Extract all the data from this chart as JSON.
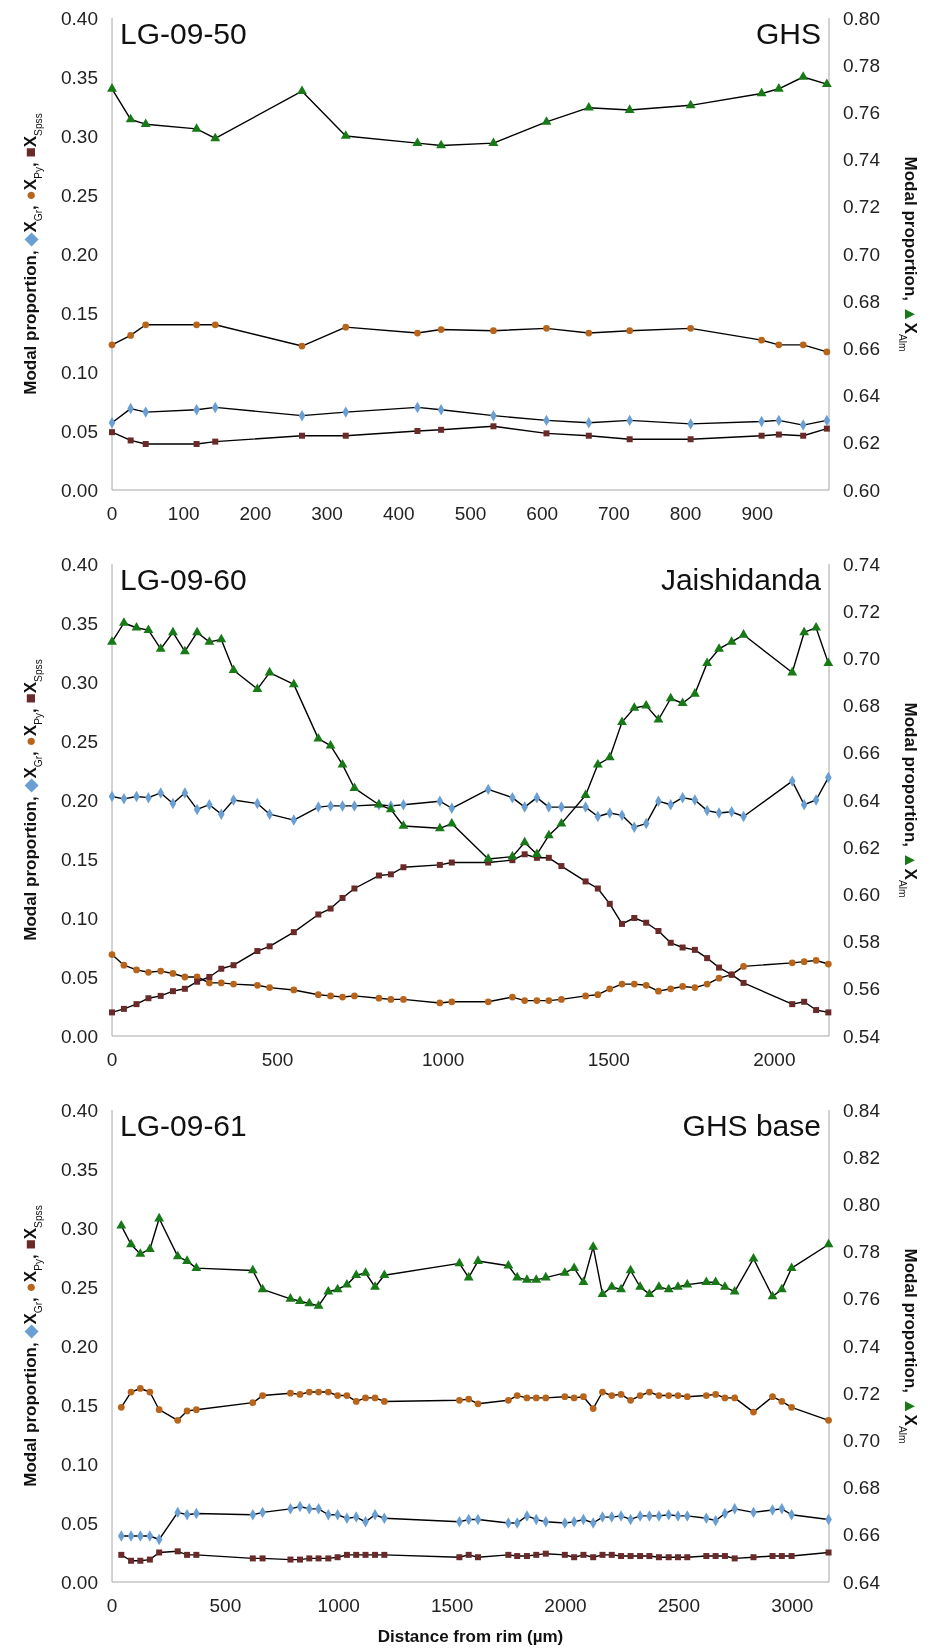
{
  "chart_data": [
    {
      "type": "line",
      "title": "LG-09-50",
      "annotations": [
        "GHS"
      ],
      "ylabel": "Modal proportion, ◆X$_{Gr}$, ●X$_{Py}$, ■X$_{Spss}$",
      "y2label": "Modal proportion, ▲X$_{Alm}$",
      "grid": false,
      "x": [
        0,
        26,
        47,
        118,
        144,
        265,
        326,
        426,
        459,
        532,
        606,
        665,
        722,
        807,
        906,
        930,
        964,
        997
      ],
      "xlim": [
        0,
        1000
      ],
      "xticks": [
        0,
        100,
        200,
        300,
        400,
        500,
        600,
        700,
        800,
        900
      ],
      "ylim": [
        0,
        0.4
      ],
      "yticks": [
        {
          "value": 0,
          "label": "0.00"
        },
        0.05,
        {
          "value": 0.1,
          "label": "0.10"
        },
        0.15,
        {
          "value": 0.2,
          "label": "0.20"
        },
        0.25,
        {
          "value": 0.3,
          "label": "0.30"
        },
        0.35,
        {
          "value": 0.4,
          "label": "0.40"
        }
      ],
      "y2lim": [
        0.6,
        0.8
      ],
      "y2ticks": [
        {
          "value": 0.6,
          "label": "0.60"
        },
        0.62,
        0.64,
        0.66,
        0.68,
        {
          "value": 0.7,
          "label": "0.70"
        },
        0.72,
        0.74,
        0.76,
        0.78,
        {
          "value": 0.8,
          "label": "0.80"
        }
      ],
      "series": [
        {
          "color": "#6a9fd4",
          "marker": "diamond",
          "values": [
            0.057,
            0.069,
            0.066,
            0.068,
            0.07,
            0.063,
            0.066,
            0.07,
            0.068,
            0.063,
            0.059,
            0.057,
            0.059,
            0.056,
            0.058,
            0.059,
            0.055,
            0.059
          ]
        },
        {
          "color": "#b8651b",
          "marker": "circle",
          "values": [
            0.123,
            0.131,
            0.14,
            0.14,
            0.14,
            0.122,
            0.138,
            0.133,
            0.136,
            0.135,
            0.137,
            0.133,
            0.135,
            0.137,
            0.127,
            0.123,
            0.123,
            0.117
          ]
        },
        {
          "color": "#6b2a2a",
          "marker": "square",
          "values": [
            0.049,
            0.042,
            0.039,
            0.039,
            0.041,
            0.046,
            0.046,
            0.05,
            0.051,
            0.054,
            0.048,
            0.046,
            0.043,
            0.043,
            0.046,
            0.047,
            0.046,
            0.052
          ]
        },
        {
          "color": "#177a17",
          "marker": "triangle",
          "axis": "y2",
          "values": [
            0.77,
            0.757,
            0.755,
            0.753,
            0.749,
            0.769,
            0.75,
            0.747,
            0.746,
            0.747,
            0.756,
            0.762,
            0.761,
            0.763,
            0.768,
            0.77,
            0.775,
            0.772
          ]
        }
      ]
    },
    {
      "type": "line",
      "title": "LG-09-60",
      "annotations": [
        "Jaishidanda"
      ],
      "ylabel": "Modal proportion, ◆X$_{Gr}$, ●X$_{Py}$, ■X$_{Spss}$",
      "y2label": "Modal proportion, ▲X$_{Alm}$",
      "grid": false,
      "x": [
        0,
        36,
        74,
        110,
        147,
        184,
        220,
        257,
        294,
        330,
        367,
        439,
        476,
        549,
        623,
        660,
        696,
        732,
        806,
        842,
        880,
        990,
        1026,
        1136,
        1209,
        1246,
        1283,
        1319,
        1357,
        1430,
        1467,
        1503,
        1540,
        1577,
        1613,
        1650,
        1687,
        1723,
        1760,
        1797,
        1833,
        1871,
        1907,
        2054,
        2090,
        2126,
        2163
      ],
      "xlim": [
        0,
        2165
      ],
      "xticks": [
        0,
        500,
        1000,
        1500,
        2000
      ],
      "ylim": [
        0,
        0.4
      ],
      "yticks": [
        {
          "value": 0,
          "label": "0.00"
        },
        0.05,
        {
          "value": 0.1,
          "label": "0.10"
        },
        0.15,
        {
          "value": 0.2,
          "label": "0.20"
        },
        0.25,
        {
          "value": 0.3,
          "label": "0.30"
        },
        0.35,
        {
          "value": 0.4,
          "label": "0.40"
        }
      ],
      "y2lim": [
        0.54,
        0.74
      ],
      "y2ticks": [
        0.54,
        0.56,
        0.58,
        {
          "value": 0.6,
          "label": "0.60"
        },
        0.62,
        0.64,
        0.66,
        0.68,
        {
          "value": 0.7,
          "label": "0.70"
        },
        0.72,
        0.74
      ],
      "series": [
        {
          "color": "#6a9fd4",
          "marker": "diamond",
          "values": [
            0.203,
            0.201,
            0.203,
            0.202,
            0.206,
            0.197,
            0.206,
            0.192,
            0.196,
            0.188,
            0.2,
            0.197,
            0.188,
            0.183,
            0.194,
            0.195,
            0.195,
            0.195,
            0.196,
            0.195,
            0.196,
            0.199,
            0.193,
            0.209,
            0.202,
            0.194,
            0.202,
            0.194,
            0.194,
            0.194,
            0.186,
            0.189,
            0.187,
            0.177,
            0.18,
            0.199,
            0.196,
            0.202,
            0.2,
            0.191,
            0.189,
            0.19,
            0.186,
            0.216,
            0.196,
            0.2,
            0.219
          ]
        },
        {
          "color": "#b8651b",
          "marker": "circle",
          "values": [
            0.069,
            0.06,
            0.056,
            0.054,
            0.055,
            0.053,
            0.05,
            0.05,
            0.045,
            0.045,
            0.044,
            0.043,
            0.041,
            0.039,
            0.035,
            0.034,
            0.033,
            0.034,
            0.032,
            0.031,
            0.031,
            0.028,
            0.029,
            0.029,
            0.033,
            0.03,
            0.03,
            0.03,
            0.031,
            0.034,
            0.035,
            0.04,
            0.044,
            0.044,
            0.043,
            0.038,
            0.04,
            0.042,
            0.041,
            0.044,
            0.049,
            0.052,
            0.059,
            0.062,
            0.063,
            0.064,
            0.061
          ]
        },
        {
          "color": "#6b2a2a",
          "marker": "square",
          "values": [
            0.02,
            0.023,
            0.027,
            0.032,
            0.034,
            0.038,
            0.04,
            0.046,
            0.05,
            0.057,
            0.06,
            0.072,
            0.076,
            0.088,
            0.103,
            0.108,
            0.117,
            0.125,
            0.136,
            0.137,
            0.143,
            0.145,
            0.147,
            0.147,
            0.149,
            0.154,
            0.151,
            0.151,
            0.144,
            0.131,
            0.125,
            0.112,
            0.095,
            0.1,
            0.096,
            0.089,
            0.079,
            0.075,
            0.073,
            0.066,
            0.058,
            0.052,
            0.045,
            0.027,
            0.029,
            0.022,
            0.02
          ]
        },
        {
          "color": "#177a17",
          "marker": "triangle",
          "axis": "y2",
          "values": [
            0.707,
            0.715,
            0.713,
            0.712,
            0.704,
            0.711,
            0.703,
            0.711,
            0.707,
            0.708,
            0.695,
            0.687,
            0.694,
            0.689,
            0.666,
            0.663,
            0.655,
            0.645,
            0.638,
            0.636,
            0.629,
            0.628,
            0.63,
            0.615,
            0.616,
            0.622,
            0.617,
            0.625,
            0.63,
            0.642,
            0.655,
            0.658,
            0.673,
            0.679,
            0.68,
            0.674,
            0.683,
            0.681,
            0.685,
            0.698,
            0.704,
            0.707,
            0.71,
            0.694,
            0.711,
            0.713,
            0.698
          ]
        }
      ]
    },
    {
      "type": "line",
      "title": "LG-09-61",
      "annotations": [
        "GHS base"
      ],
      "xlabel": "Distance from rim (µm)",
      "ylabel": "Modal proportion, ◆X$_{Gr}$, ●X$_{Py}$, ■X$_{Spss}$",
      "y2label": "Modal proportion, ▲X$_{Alm}$",
      "grid": false,
      "x": [
        41,
        84,
        125,
        167,
        208,
        290,
        331,
        372,
        621,
        664,
        787,
        829,
        870,
        911,
        954,
        995,
        1036,
        1077,
        1118,
        1160,
        1201,
        1532,
        1573,
        1614,
        1748,
        1787,
        1830,
        1871,
        1913,
        1997,
        2038,
        2079,
        2122,
        2163,
        2204,
        2245,
        2287,
        2329,
        2370,
        2412,
        2455,
        2496,
        2537,
        2621,
        2662,
        2703,
        2746,
        2829,
        2913,
        2954,
        2997,
        3160
      ],
      "xlim": [
        0,
        3162
      ],
      "xticks": [
        0,
        500,
        1000,
        1500,
        2000,
        2500,
        3000
      ],
      "ylim": [
        0,
        0.4
      ],
      "yticks": [
        {
          "value": 0,
          "label": "0.00"
        },
        0.05,
        {
          "value": 0.1,
          "label": "0.10"
        },
        0.15,
        {
          "value": 0.2,
          "label": "0.20"
        },
        0.25,
        {
          "value": 0.3,
          "label": "0.30"
        },
        0.35,
        {
          "value": 0.4,
          "label": "0.40"
        }
      ],
      "y2lim": [
        0.64,
        0.84
      ],
      "y2ticks": [
        0.64,
        0.66,
        0.68,
        {
          "value": 0.7,
          "label": "0.70"
        },
        0.72,
        0.74,
        0.76,
        0.78,
        {
          "value": 0.8,
          "label": "0.80"
        },
        0.82,
        0.84
      ],
      "series": [
        {
          "color": "#6a9fd4",
          "marker": "diamond",
          "values": [
            0.039,
            0.039,
            0.039,
            0.039,
            0.036,
            0.059,
            0.057,
            0.058,
            0.057,
            0.059,
            0.062,
            0.064,
            0.062,
            0.062,
            0.057,
            0.057,
            0.054,
            0.055,
            0.051,
            0.057,
            0.054,
            0.051,
            0.053,
            0.053,
            0.05,
            0.05,
            0.056,
            0.053,
            0.051,
            0.05,
            0.051,
            0.053,
            0.05,
            0.055,
            0.055,
            0.056,
            0.053,
            0.056,
            0.056,
            0.056,
            0.057,
            0.056,
            0.056,
            0.054,
            0.052,
            0.058,
            0.062,
            0.059,
            0.061,
            0.062,
            0.057,
            0.053
          ]
        },
        {
          "color": "#b8651b",
          "marker": "circle",
          "values": [
            0.148,
            0.161,
            0.164,
            0.161,
            0.146,
            0.137,
            0.145,
            0.146,
            0.152,
            0.158,
            0.16,
            0.159,
            0.161,
            0.161,
            0.161,
            0.158,
            0.158,
            0.153,
            0.156,
            0.156,
            0.153,
            0.154,
            0.155,
            0.151,
            0.154,
            0.158,
            0.156,
            0.156,
            0.156,
            0.157,
            0.156,
            0.157,
            0.147,
            0.161,
            0.158,
            0.159,
            0.154,
            0.158,
            0.161,
            0.158,
            0.158,
            0.158,
            0.157,
            0.158,
            0.159,
            0.156,
            0.156,
            0.144,
            0.157,
            0.153,
            0.148,
            0.137
          ]
        },
        {
          "color": "#6b2a2a",
          "marker": "square",
          "values": [
            0.023,
            0.018,
            0.018,
            0.019,
            0.025,
            0.026,
            0.023,
            0.023,
            0.02,
            0.02,
            0.019,
            0.019,
            0.02,
            0.02,
            0.02,
            0.021,
            0.023,
            0.023,
            0.023,
            0.023,
            0.023,
            0.021,
            0.023,
            0.021,
            0.023,
            0.022,
            0.022,
            0.023,
            0.024,
            0.023,
            0.021,
            0.023,
            0.021,
            0.023,
            0.023,
            0.022,
            0.022,
            0.022,
            0.022,
            0.021,
            0.021,
            0.021,
            0.021,
            0.022,
            0.022,
            0.022,
            0.02,
            0.021,
            0.022,
            0.022,
            0.022,
            0.025
          ]
        },
        {
          "color": "#177a17",
          "marker": "triangle",
          "axis": "y2",
          "values": [
            0.791,
            0.783,
            0.779,
            0.781,
            0.794,
            0.778,
            0.776,
            0.773,
            0.772,
            0.764,
            0.76,
            0.759,
            0.758,
            0.757,
            0.763,
            0.764,
            0.766,
            0.77,
            0.771,
            0.765,
            0.77,
            0.775,
            0.769,
            0.776,
            0.774,
            0.769,
            0.768,
            0.768,
            0.769,
            0.771,
            0.773,
            0.767,
            0.782,
            0.762,
            0.765,
            0.764,
            0.772,
            0.765,
            0.762,
            0.765,
            0.764,
            0.765,
            0.766,
            0.767,
            0.767,
            0.765,
            0.763,
            0.777,
            0.761,
            0.764,
            0.773,
            0.783
          ]
        }
      ]
    }
  ]
}
